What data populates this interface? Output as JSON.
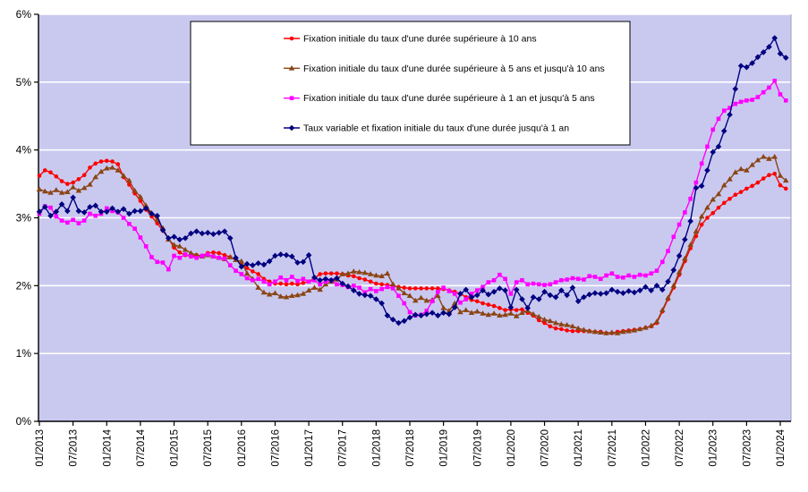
{
  "chart_data": {
    "type": "line",
    "title": "",
    "ylabel": "",
    "xlabel": "",
    "ylim": [
      0,
      6
    ],
    "y_tick_labels": [
      "0%",
      "1%",
      "2%",
      "3%",
      "4%",
      "5%",
      "6%"
    ],
    "x_tick_labels": [
      "01/2013",
      "07/2013",
      "01/2014",
      "07/2014",
      "01/2015",
      "07/2015",
      "01/2016",
      "07/2016",
      "01/2017",
      "07/2017",
      "01/2018",
      "07/2018",
      "01/2019",
      "07/2019",
      "01/2020",
      "07/2020",
      "01/2021",
      "07/2021",
      "01/2022",
      "07/2022",
      "01/2023",
      "07/2023",
      "01/2024"
    ],
    "x_tick_every_months": 6,
    "x_monthly_start": "01/2013",
    "grid": true,
    "gridline_color": "#FFFFFF",
    "plot_bg_color": "#C9C9F0",
    "axis_color": "#000000",
    "legend_position": "top-center",
    "legend_bg": "#FFFFFF",
    "legend_border": "#000000",
    "series": [
      {
        "name": "Fixation initiale du taux d'une durée supérieure à 10 ans",
        "color": "#FF0000",
        "marker": "circle",
        "values": [
          3.62,
          3.7,
          3.67,
          3.61,
          3.54,
          3.5,
          3.52,
          3.57,
          3.63,
          3.74,
          3.8,
          3.83,
          3.84,
          3.83,
          3.79,
          3.6,
          3.49,
          3.36,
          3.25,
          3.12,
          3.02,
          2.92,
          2.81,
          2.7,
          2.56,
          2.49,
          2.45,
          2.43,
          2.45,
          2.44,
          2.48,
          2.49,
          2.48,
          2.45,
          2.42,
          2.38,
          2.32,
          2.26,
          2.21,
          2.17,
          2.1,
          2.06,
          2.03,
          2.03,
          2.02,
          2.03,
          2.02,
          2.04,
          2.06,
          2.11,
          2.17,
          2.18,
          2.18,
          2.18,
          2.17,
          2.15,
          2.14,
          2.11,
          2.09,
          2.06,
          2.03,
          2.02,
          2.01,
          2.0,
          1.98,
          1.97,
          1.96,
          1.96,
          1.96,
          1.96,
          1.96,
          1.96,
          1.95,
          1.93,
          1.91,
          1.88,
          1.83,
          1.79,
          1.77,
          1.74,
          1.72,
          1.7,
          1.67,
          1.64,
          1.65,
          1.64,
          1.65,
          1.6,
          1.56,
          1.49,
          1.45,
          1.4,
          1.37,
          1.36,
          1.34,
          1.33,
          1.33,
          1.33,
          1.33,
          1.32,
          1.32,
          1.3,
          1.3,
          1.32,
          1.33,
          1.34,
          1.35,
          1.36,
          1.38,
          1.4,
          1.45,
          1.62,
          1.8,
          1.97,
          2.16,
          2.36,
          2.55,
          2.73,
          2.9,
          3.0,
          3.07,
          3.15,
          3.22,
          3.28,
          3.34,
          3.38,
          3.43,
          3.47,
          3.52,
          3.58,
          3.63,
          3.65,
          3.48,
          3.43
        ]
      },
      {
        "name": "Fixation initiale du taux d'une durée supérieure à 5 ans et jusqu'à 10 ans",
        "color": "#8B4513",
        "marker": "triangle-up",
        "values": [
          3.42,
          3.39,
          3.37,
          3.41,
          3.37,
          3.38,
          3.45,
          3.4,
          3.44,
          3.49,
          3.6,
          3.68,
          3.73,
          3.74,
          3.7,
          3.62,
          3.55,
          3.4,
          3.31,
          3.18,
          3.07,
          2.97,
          2.85,
          2.68,
          2.6,
          2.58,
          2.53,
          2.48,
          2.45,
          2.43,
          2.45,
          2.43,
          2.41,
          2.39,
          2.42,
          2.38,
          2.36,
          2.18,
          2.1,
          1.97,
          1.9,
          1.87,
          1.89,
          1.84,
          1.83,
          1.85,
          1.86,
          1.88,
          1.93,
          1.97,
          1.94,
          2.02,
          2.06,
          2.09,
          2.17,
          2.18,
          2.21,
          2.2,
          2.19,
          2.17,
          2.15,
          2.14,
          2.18,
          2.02,
          1.96,
          1.89,
          1.85,
          1.78,
          1.82,
          1.78,
          1.79,
          1.85,
          1.67,
          1.63,
          1.74,
          1.61,
          1.64,
          1.6,
          1.62,
          1.59,
          1.57,
          1.59,
          1.56,
          1.57,
          1.59,
          1.55,
          1.6,
          1.63,
          1.58,
          1.54,
          1.5,
          1.48,
          1.45,
          1.43,
          1.42,
          1.4,
          1.37,
          1.35,
          1.33,
          1.32,
          1.31,
          1.3,
          1.31,
          1.3,
          1.32,
          1.33,
          1.34,
          1.36,
          1.38,
          1.41,
          1.47,
          1.64,
          1.82,
          2.0,
          2.2,
          2.4,
          2.6,
          2.8,
          3.02,
          3.15,
          3.27,
          3.35,
          3.48,
          3.57,
          3.67,
          3.72,
          3.7,
          3.78,
          3.85,
          3.9,
          3.87,
          3.9,
          3.62,
          3.55
        ]
      },
      {
        "name": "Fixation initiale du taux d'une durée supérieure à 1 an et jusqu'à 5 ans",
        "color": "#FF00FF",
        "marker": "square",
        "values": [
          3.06,
          3.17,
          3.15,
          3.02,
          2.96,
          2.93,
          2.97,
          2.92,
          2.96,
          3.06,
          3.03,
          3.06,
          3.14,
          3.1,
          3.08,
          3.0,
          2.91,
          2.84,
          2.71,
          2.58,
          2.42,
          2.35,
          2.34,
          2.24,
          2.44,
          2.41,
          2.46,
          2.43,
          2.41,
          2.44,
          2.46,
          2.43,
          2.41,
          2.4,
          2.3,
          2.22,
          2.17,
          2.11,
          2.08,
          2.1,
          2.06,
          2.02,
          2.06,
          2.12,
          2.08,
          2.13,
          2.07,
          2.1,
          2.06,
          2.08,
          2.02,
          2.06,
          2.08,
          2.02,
          2.01,
          1.98,
          2.0,
          1.97,
          1.9,
          1.95,
          1.92,
          1.95,
          1.98,
          1.96,
          1.85,
          1.74,
          1.61,
          1.56,
          1.57,
          1.63,
          1.77,
          1.91,
          1.97,
          1.92,
          1.88,
          1.75,
          1.8,
          1.88,
          1.93,
          1.98,
          2.05,
          2.08,
          2.16,
          2.1,
          1.88,
          2.05,
          2.08,
          2.02,
          2.03,
          2.02,
          2.01,
          2.02,
          2.05,
          2.08,
          2.09,
          2.11,
          2.1,
          2.09,
          2.14,
          2.13,
          2.1,
          2.15,
          2.18,
          2.13,
          2.12,
          2.15,
          2.13,
          2.16,
          2.15,
          2.18,
          2.22,
          2.35,
          2.51,
          2.72,
          2.9,
          3.08,
          3.28,
          3.52,
          3.8,
          4.05,
          4.3,
          4.46,
          4.58,
          4.62,
          4.68,
          4.71,
          4.73,
          4.74,
          4.78,
          4.85,
          4.92,
          5.02,
          4.82,
          4.73
        ]
      },
      {
        "name": "Taux variable et fixation initiale du taux d'une durée jusqu'à 1 an",
        "color": "#000080",
        "marker": "diamond",
        "values": [
          3.09,
          3.16,
          3.03,
          3.09,
          3.2,
          3.1,
          3.3,
          3.1,
          3.08,
          3.16,
          3.18,
          3.09,
          3.09,
          3.14,
          3.09,
          3.13,
          3.06,
          3.1,
          3.1,
          3.14,
          3.06,
          3.03,
          2.82,
          2.7,
          2.72,
          2.68,
          2.7,
          2.77,
          2.8,
          2.77,
          2.78,
          2.76,
          2.78,
          2.8,
          2.7,
          2.41,
          2.28,
          2.32,
          2.3,
          2.33,
          2.31,
          2.36,
          2.44,
          2.46,
          2.45,
          2.43,
          2.34,
          2.35,
          2.45,
          2.12,
          2.08,
          2.1,
          2.08,
          2.11,
          2.03,
          1.99,
          1.93,
          1.88,
          1.86,
          1.85,
          1.8,
          1.74,
          1.56,
          1.5,
          1.45,
          1.48,
          1.53,
          1.57,
          1.56,
          1.58,
          1.6,
          1.56,
          1.6,
          1.58,
          1.68,
          1.88,
          1.94,
          1.83,
          1.86,
          1.93,
          1.87,
          1.91,
          1.96,
          1.93,
          1.68,
          1.94,
          1.8,
          1.67,
          1.83,
          1.8,
          1.91,
          1.86,
          1.83,
          1.93,
          1.86,
          1.97,
          1.77,
          1.83,
          1.87,
          1.89,
          1.88,
          1.89,
          1.94,
          1.91,
          1.89,
          1.92,
          1.9,
          1.93,
          1.98,
          1.93,
          2.0,
          1.94,
          2.06,
          2.23,
          2.44,
          2.68,
          2.95,
          3.44,
          3.47,
          3.7,
          3.97,
          4.05,
          4.28,
          4.52,
          4.9,
          5.24,
          5.22,
          5.28,
          5.37,
          5.44,
          5.52,
          5.65,
          5.42,
          5.36
        ]
      }
    ]
  }
}
